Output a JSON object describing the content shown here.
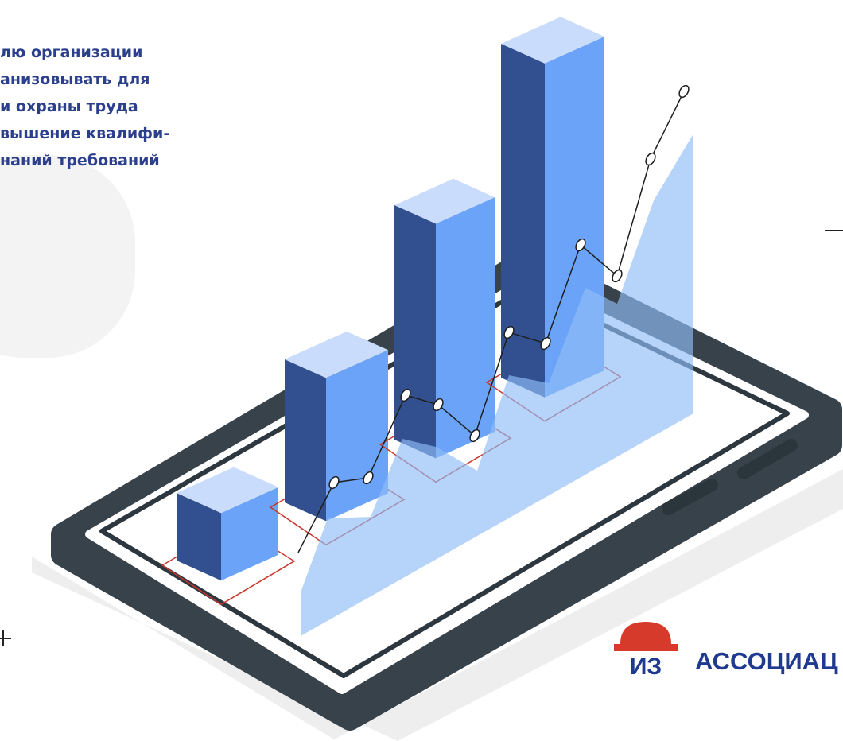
{
  "text": {
    "lines": [
      "лю организации",
      "анизовывать для",
      "и охраны труда",
      "вышение квалифи-",
      "наний требований"
    ]
  },
  "logo": {
    "text": "АССОЦИАЦ",
    "mark": "ИЗ"
  }
}
